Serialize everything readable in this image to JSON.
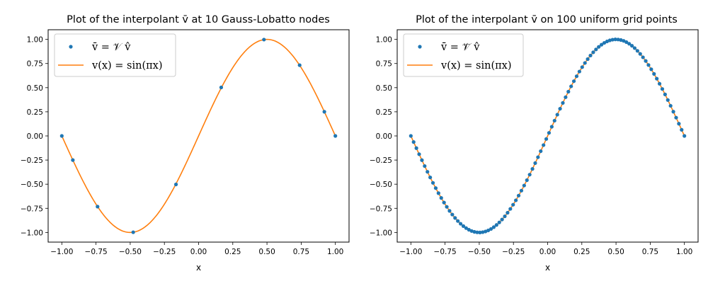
{
  "colors": {
    "markers": "#1f77b4",
    "line": "#ff7f0e"
  },
  "chart_data": [
    {
      "type": "line",
      "title": "Plot of the interpolant v̄ at 10 Gauss-Lobatto nodes",
      "xlabel": "x",
      "ylabel": "",
      "xlim": [
        -1.1,
        1.1
      ],
      "ylim": [
        -1.1,
        1.1
      ],
      "xticks": [
        -1.0,
        -0.75,
        -0.5,
        -0.25,
        0.0,
        0.25,
        0.5,
        0.75,
        1.0
      ],
      "xtick_labels": [
        "−1.00",
        "−0.75",
        "−0.50",
        "−0.25",
        "0.00",
        "0.25",
        "0.50",
        "0.75",
        "1.00"
      ],
      "yticks": [
        -1.0,
        -0.75,
        -0.5,
        -0.25,
        0.0,
        0.25,
        0.5,
        0.75,
        1.0
      ],
      "ytick_labels": [
        "−1.00",
        "−0.75",
        "−0.50",
        "−0.25",
        "0.00",
        "0.25",
        "0.50",
        "0.75",
        "1.00"
      ],
      "legend_position": "top-left",
      "grid": false,
      "series": [
        {
          "name": "v̄ = 𝒱 v̂",
          "kind": "markers",
          "color": "#1f77b4",
          "x": [
            -1.0,
            -0.9195,
            -0.7388,
            -0.4779,
            -0.1653,
            0.1653,
            0.4779,
            0.7388,
            0.9195,
            1.0
          ],
          "y": [
            0.0,
            -0.2504,
            -0.7327,
            -0.9976,
            -0.5025,
            0.5025,
            0.9976,
            0.7327,
            0.2504,
            0.0
          ]
        },
        {
          "name": "v(x) = sin(πx)",
          "kind": "line",
          "color": "#ff7f0e",
          "x": [
            -1.0,
            -0.9,
            -0.8,
            -0.7,
            -0.6,
            -0.5,
            -0.4,
            -0.3,
            -0.2,
            -0.1,
            0.0,
            0.1,
            0.2,
            0.3,
            0.4,
            0.5,
            0.6,
            0.7,
            0.8,
            0.9,
            1.0
          ],
          "y": [
            0.0,
            -0.309,
            -0.588,
            -0.809,
            -0.951,
            -1.0,
            -0.951,
            -0.809,
            -0.588,
            -0.309,
            0.0,
            0.309,
            0.588,
            0.809,
            0.951,
            1.0,
            0.951,
            0.809,
            0.588,
            0.309,
            0.0
          ]
        }
      ]
    },
    {
      "type": "line",
      "title": "Plot of the interpolant v̄̄ on 100 uniform grid points",
      "xlabel": "x",
      "ylabel": "",
      "xlim": [
        -1.1,
        1.1
      ],
      "ylim": [
        -1.1,
        1.1
      ],
      "xticks": [
        -1.0,
        -0.75,
        -0.5,
        -0.25,
        0.0,
        0.25,
        0.5,
        0.75,
        1.0
      ],
      "xtick_labels": [
        "−1.00",
        "−0.75",
        "−0.50",
        "−0.25",
        "0.00",
        "0.25",
        "0.50",
        "0.75",
        "1.00"
      ],
      "yticks": [
        -1.0,
        -0.75,
        -0.5,
        -0.25,
        0.0,
        0.25,
        0.5,
        0.75,
        1.0
      ],
      "ytick_labels": [
        "−1.00",
        "−0.75",
        "−0.50",
        "−0.25",
        "0.00",
        "0.25",
        "0.50",
        "0.75",
        "1.00"
      ],
      "legend_position": "top-left",
      "grid": false,
      "series": [
        {
          "name": "v̄̄ = 𝒱̄ v̂",
          "kind": "markers",
          "color": "#1f77b4",
          "x": [
            -1.0,
            -0.9798,
            -0.9596,
            -0.9394,
            -0.9192,
            -0.899,
            -0.8788,
            -0.8586,
            -0.8384,
            -0.8182,
            -0.798,
            -0.7778,
            -0.7576,
            -0.7374,
            -0.7172,
            -0.697,
            -0.6768,
            -0.6566,
            -0.6364,
            -0.6162,
            -0.596,
            -0.5758,
            -0.5556,
            -0.5354,
            -0.5152,
            -0.4949,
            -0.4747,
            -0.4545,
            -0.4343,
            -0.4141,
            -0.3939,
            -0.3737,
            -0.3535,
            -0.3333,
            -0.3131,
            -0.2929,
            -0.2727,
            -0.2525,
            -0.2323,
            -0.2121,
            -0.1919,
            -0.1717,
            -0.1515,
            -0.1313,
            -0.1111,
            -0.0909,
            -0.0707,
            -0.0505,
            -0.0303,
            -0.0101,
            0.0101,
            0.0303,
            0.0505,
            0.0707,
            0.0909,
            0.1111,
            0.1313,
            0.1515,
            0.1717,
            0.1919,
            0.2121,
            0.2323,
            0.2525,
            0.2727,
            0.2929,
            0.3131,
            0.3333,
            0.3535,
            0.3737,
            0.3939,
            0.4141,
            0.4343,
            0.4545,
            0.4747,
            0.4949,
            0.5152,
            0.5354,
            0.5556,
            0.5758,
            0.596,
            0.6162,
            0.6364,
            0.6566,
            0.6768,
            0.697,
            0.7172,
            0.7374,
            0.7576,
            0.7778,
            0.798,
            0.8182,
            0.8384,
            0.8586,
            0.8788,
            0.899,
            0.9192,
            0.9394,
            0.9596,
            0.9798,
            1.0
          ],
          "y": [
            0.0,
            -0.0634,
            -0.1266,
            -0.1893,
            -0.2511,
            -0.312,
            -0.3717,
            -0.4298,
            -0.4862,
            -0.5406,
            -0.5929,
            -0.6428,
            -0.6901,
            -0.7346,
            -0.7762,
            -0.8146,
            -0.8497,
            -0.8815,
            -0.9096,
            -0.9341,
            -0.9549,
            -0.9718,
            -0.9848,
            -0.9938,
            -0.9989,
            -0.9999,
            -0.9969,
            -0.9898,
            -0.9788,
            -0.9638,
            -0.945,
            -0.9224,
            -0.896,
            -0.866,
            -0.8326,
            -0.7958,
            -0.7557,
            -0.7127,
            -0.6668,
            -0.6182,
            -0.5671,
            -0.5137,
            -0.4582,
            -0.4009,
            -0.342,
            -0.2817,
            -0.2203,
            -0.158,
            -0.0951,
            -0.0317,
            0.0317,
            0.0951,
            0.158,
            0.2203,
            0.2817,
            0.342,
            0.4009,
            0.4582,
            0.5137,
            0.5671,
            0.6182,
            0.6668,
            0.7127,
            0.7557,
            0.7958,
            0.8326,
            0.866,
            0.896,
            0.9224,
            0.945,
            0.9638,
            0.9788,
            0.9898,
            0.9969,
            0.9999,
            0.9989,
            0.9938,
            0.9848,
            0.9718,
            0.9549,
            0.9341,
            0.9096,
            0.8815,
            0.8497,
            0.8146,
            0.7762,
            0.7346,
            0.6901,
            0.6428,
            0.5929,
            0.5406,
            0.4862,
            0.4298,
            0.3717,
            0.312,
            0.2511,
            0.1893,
            0.1266,
            0.0634,
            0.0
          ]
        },
        {
          "name": "v(x) = sin(πx)",
          "kind": "line",
          "color": "#ff7f0e",
          "x": [
            -1.0,
            -0.9,
            -0.8,
            -0.7,
            -0.6,
            -0.5,
            -0.4,
            -0.3,
            -0.2,
            -0.1,
            0.0,
            0.1,
            0.2,
            0.3,
            0.4,
            0.5,
            0.6,
            0.7,
            0.8,
            0.9,
            1.0
          ],
          "y": [
            0.0,
            -0.309,
            -0.588,
            -0.809,
            -0.951,
            -1.0,
            -0.951,
            -0.809,
            -0.588,
            -0.309,
            0.0,
            0.309,
            0.588,
            0.809,
            0.951,
            1.0,
            0.951,
            0.809,
            0.588,
            0.309,
            0.0
          ]
        }
      ]
    }
  ]
}
